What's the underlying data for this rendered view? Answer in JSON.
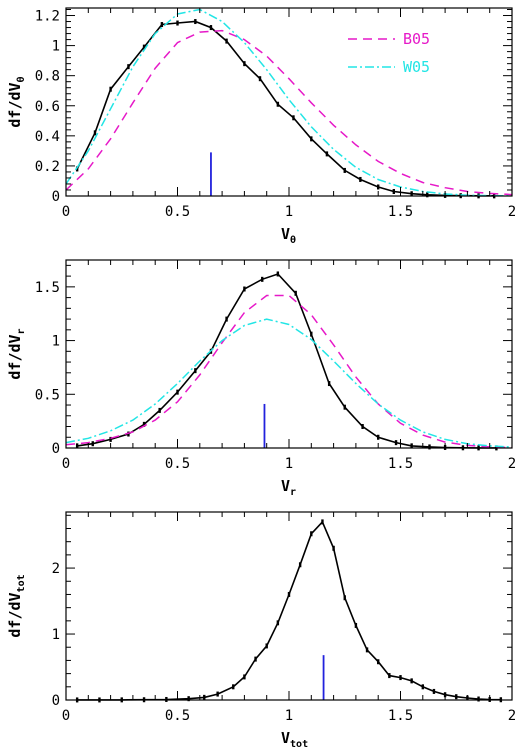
{
  "chart_data": [
    {
      "type": "line",
      "xlabel": "V",
      "xlabel_sub": "θ",
      "ylabel": "df/dV",
      "ylabel_sub": "θ",
      "xlim": [
        0,
        2
      ],
      "ylim": [
        0,
        1.25
      ],
      "xticks": [
        0,
        0.5,
        1,
        1.5,
        2
      ],
      "xtick_labels": [
        "0",
        "0.5",
        "1",
        "1.5",
        "2"
      ],
      "yticks": [
        0,
        0.2,
        0.4,
        0.6,
        0.8,
        1.0,
        1.2
      ],
      "ytick_labels": [
        "0",
        "0.2",
        "0.4",
        "0.6",
        "0.8",
        "1",
        "1.2"
      ],
      "legend": "top-right",
      "marker_x": 0.65,
      "marker_y": 0.29,
      "series": [
        {
          "name": "",
          "style": "solid",
          "color": "#000000",
          "errorbars": true,
          "x": [
            0.05,
            0.13,
            0.2,
            0.28,
            0.35,
            0.43,
            0.5,
            0.58,
            0.65,
            0.72,
            0.8,
            0.87,
            0.95,
            1.02,
            1.1,
            1.17,
            1.25,
            1.32,
            1.4,
            1.47,
            1.55,
            1.62,
            1.7,
            1.77,
            1.85,
            1.92
          ],
          "y": [
            0.18,
            0.42,
            0.71,
            0.86,
            0.99,
            1.14,
            1.15,
            1.16,
            1.12,
            1.03,
            0.88,
            0.78,
            0.61,
            0.52,
            0.38,
            0.28,
            0.17,
            0.11,
            0.06,
            0.03,
            0.015,
            0.008,
            0.004,
            0.002,
            0.001,
            0.001
          ]
        },
        {
          "name": "B05",
          "style": "dashed",
          "color": "#e619c8",
          "x": [
            0,
            0.1,
            0.2,
            0.3,
            0.4,
            0.5,
            0.6,
            0.7,
            0.8,
            0.9,
            1.0,
            1.1,
            1.2,
            1.3,
            1.4,
            1.5,
            1.6,
            1.7,
            1.8,
            1.9,
            2.0
          ],
          "y": [
            0.04,
            0.18,
            0.38,
            0.62,
            0.85,
            1.02,
            1.09,
            1.1,
            1.04,
            0.93,
            0.78,
            0.62,
            0.47,
            0.34,
            0.23,
            0.15,
            0.09,
            0.055,
            0.03,
            0.017,
            0.009
          ]
        },
        {
          "name": "W05",
          "style": "dashdot",
          "color": "#22e5e5",
          "x": [
            0,
            0.1,
            0.2,
            0.3,
            0.4,
            0.5,
            0.6,
            0.7,
            0.8,
            0.9,
            1.0,
            1.1,
            1.2,
            1.3,
            1.4,
            1.5,
            1.6,
            1.7,
            1.8,
            1.9,
            2.0
          ],
          "y": [
            0.08,
            0.3,
            0.58,
            0.86,
            1.08,
            1.21,
            1.24,
            1.16,
            1.02,
            0.84,
            0.64,
            0.46,
            0.31,
            0.19,
            0.11,
            0.06,
            0.03,
            0.013,
            0.005,
            0.002,
            0.001
          ]
        }
      ]
    },
    {
      "type": "line",
      "xlabel": "V",
      "xlabel_sub": "r",
      "ylabel": "df/dV",
      "ylabel_sub": "r",
      "xlim": [
        0,
        2
      ],
      "ylim": [
        0,
        1.75
      ],
      "xticks": [
        0,
        0.5,
        1,
        1.5,
        2
      ],
      "xtick_labels": [
        "0",
        "0.5",
        "1",
        "1.5",
        "2"
      ],
      "yticks": [
        0,
        0.5,
        1.0,
        1.5
      ],
      "ytick_labels": [
        "0",
        "0.5",
        "1",
        "1.5"
      ],
      "marker_x": 0.89,
      "marker_y": 0.41,
      "series": [
        {
          "name": "",
          "style": "solid",
          "color": "#000000",
          "errorbars": true,
          "x": [
            0.05,
            0.12,
            0.2,
            0.28,
            0.35,
            0.42,
            0.5,
            0.58,
            0.65,
            0.72,
            0.8,
            0.88,
            0.95,
            1.03,
            1.1,
            1.18,
            1.25,
            1.33,
            1.4,
            1.48,
            1.55,
            1.63,
            1.7,
            1.78,
            1.85,
            1.93
          ],
          "y": [
            0.02,
            0.04,
            0.08,
            0.13,
            0.22,
            0.35,
            0.52,
            0.72,
            0.9,
            1.2,
            1.48,
            1.57,
            1.62,
            1.44,
            1.06,
            0.6,
            0.38,
            0.2,
            0.1,
            0.05,
            0.02,
            0.01,
            0.005,
            0.002,
            0.001,
            0.001
          ]
        },
        {
          "name": "B05",
          "style": "dashed",
          "color": "#e619c8",
          "x": [
            0,
            0.1,
            0.2,
            0.3,
            0.4,
            0.5,
            0.6,
            0.7,
            0.8,
            0.9,
            1.0,
            1.1,
            1.2,
            1.3,
            1.4,
            1.5,
            1.6,
            1.7,
            1.8,
            1.9,
            2.0
          ],
          "y": [
            0.03,
            0.05,
            0.09,
            0.15,
            0.26,
            0.43,
            0.68,
            0.98,
            1.26,
            1.42,
            1.42,
            1.24,
            0.96,
            0.66,
            0.41,
            0.23,
            0.12,
            0.055,
            0.024,
            0.01,
            0.004
          ]
        },
        {
          "name": "W05",
          "style": "dashdot",
          "color": "#22e5e5",
          "x": [
            0,
            0.1,
            0.2,
            0.3,
            0.4,
            0.5,
            0.6,
            0.7,
            0.8,
            0.9,
            1.0,
            1.1,
            1.2,
            1.3,
            1.4,
            1.5,
            1.6,
            1.7,
            1.8,
            1.9,
            2.0
          ],
          "y": [
            0.05,
            0.09,
            0.16,
            0.26,
            0.41,
            0.6,
            0.81,
            1.0,
            1.14,
            1.2,
            1.15,
            1.01,
            0.81,
            0.6,
            0.41,
            0.26,
            0.15,
            0.08,
            0.04,
            0.02,
            0.009
          ]
        }
      ]
    },
    {
      "type": "line",
      "xlabel": "V",
      "xlabel_sub": "tot",
      "ylabel": "df/dV",
      "ylabel_sub": "tot",
      "xlim": [
        0,
        2
      ],
      "ylim": [
        0,
        2.85
      ],
      "xticks": [
        0,
        0.5,
        1,
        1.5,
        2
      ],
      "xtick_labels": [
        "0",
        "0.5",
        "1",
        "1.5",
        "2"
      ],
      "yticks": [
        0,
        1,
        2
      ],
      "ytick_labels": [
        "0",
        "1",
        "2"
      ],
      "marker_x": 1.155,
      "marker_y": 0.68,
      "series": [
        {
          "name": "",
          "style": "solid",
          "color": "#000000",
          "errorbars": true,
          "x": [
            0.05,
            0.15,
            0.25,
            0.35,
            0.45,
            0.55,
            0.62,
            0.68,
            0.75,
            0.8,
            0.85,
            0.9,
            0.95,
            1.0,
            1.05,
            1.1,
            1.15,
            1.2,
            1.25,
            1.3,
            1.35,
            1.4,
            1.45,
            1.5,
            1.55,
            1.6,
            1.65,
            1.7,
            1.75,
            1.8,
            1.85,
            1.9,
            1.95
          ],
          "y": [
            0.001,
            0.001,
            0.002,
            0.004,
            0.008,
            0.02,
            0.04,
            0.09,
            0.2,
            0.35,
            0.62,
            0.82,
            1.17,
            1.6,
            2.05,
            2.52,
            2.7,
            2.3,
            1.55,
            1.13,
            0.76,
            0.58,
            0.37,
            0.34,
            0.29,
            0.2,
            0.13,
            0.08,
            0.05,
            0.03,
            0.015,
            0.008,
            0.004
          ]
        }
      ]
    }
  ],
  "legend_labels": {
    "b05": "B05",
    "w05": "W05"
  },
  "colors": {
    "data": "#000000",
    "b05": "#e619c8",
    "w05": "#22e5e5",
    "marker": "#2222dd"
  }
}
